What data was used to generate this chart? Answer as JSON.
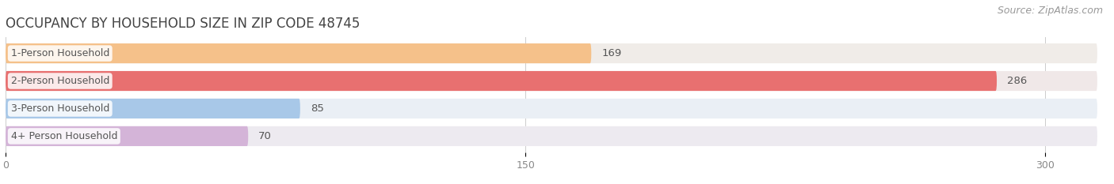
{
  "title": "OCCUPANCY BY HOUSEHOLD SIZE IN ZIP CODE 48745",
  "source": "Source: ZipAtlas.com",
  "categories": [
    "1-Person Household",
    "2-Person Household",
    "3-Person Household",
    "4+ Person Household"
  ],
  "values": [
    169,
    286,
    85,
    70
  ],
  "bar_colors": [
    "#f5c18a",
    "#e87070",
    "#a8c8e8",
    "#d4b4d8"
  ],
  "bar_bg_colors": [
    "#f0ece8",
    "#f0e8e8",
    "#eaeff5",
    "#edeaf0"
  ],
  "xlim": [
    0,
    315
  ],
  "xticks": [
    0,
    150,
    300
  ],
  "title_fontsize": 12,
  "label_fontsize": 9,
  "value_fontsize": 9.5,
  "source_fontsize": 9,
  "background_color": "#ffffff",
  "bar_height": 0.72,
  "label_color": "#555555",
  "value_color": "#555555",
  "title_color": "#444444",
  "source_color": "#999999"
}
